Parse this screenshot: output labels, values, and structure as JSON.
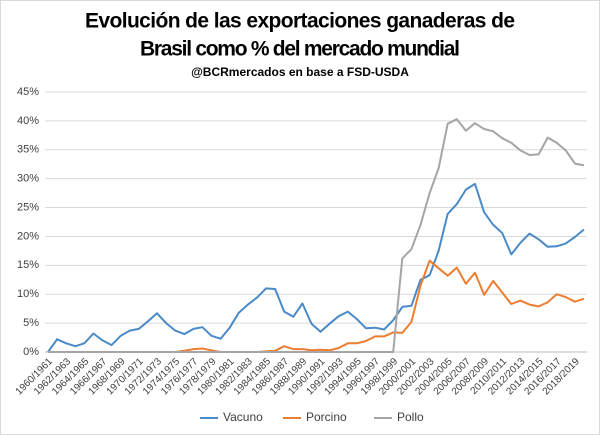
{
  "chart_data": {
    "type": "line",
    "title": "Evolución de las exportaciones ganaderas de",
    "title_line2": "Brasil como % del mercado mundial",
    "subtitle": "@BCRmercados en base a FSD-USDA",
    "categories": [
      "1960/1961",
      null,
      "1962/1963",
      null,
      "1964/1965",
      null,
      "1966/1967",
      null,
      "1968/1969",
      null,
      "1970/1971",
      null,
      "1972/1973",
      null,
      "1974/1975",
      null,
      "1976/1977",
      null,
      "1978/1979",
      null,
      "1980/1981",
      null,
      "1982/1983",
      null,
      "1984/1985",
      null,
      "1986/1987",
      null,
      "1988/1989",
      null,
      "1990/1991",
      null,
      "1992/1993",
      null,
      "1994/1995",
      null,
      "1996/1997",
      null,
      "1998/1999",
      null,
      "2000/2001",
      null,
      "2002/2003",
      null,
      "2004/2005",
      null,
      "2006/2007",
      null,
      "2008/2009",
      null,
      "2010/2011",
      null,
      "2012/2013",
      null,
      "2014/2015",
      null,
      "2016/2017",
      null,
      "2018/2019",
      null
    ],
    "series": [
      {
        "name": "Vacuno",
        "color": "#4a8ac9",
        "values": [
          0,
          2.2,
          1.5,
          1.0,
          1.5,
          3.2,
          2.0,
          1.2,
          2.8,
          3.7,
          4.0,
          5.3,
          6.7,
          5.0,
          3.7,
          3.1,
          4.0,
          4.3,
          2.8,
          2.3,
          4.2,
          6.8,
          8.2,
          9.4,
          11.0,
          10.9,
          7.0,
          6.1,
          8.4,
          4.9,
          3.5,
          4.9,
          6.2,
          7.0,
          5.7,
          4.1,
          4.2,
          3.9,
          5.5,
          7.8,
          8.0,
          12.5,
          13.3,
          17.5,
          23.9,
          25.6,
          28.1,
          29.1,
          24.2,
          22.0,
          20.6,
          16.9,
          18.9,
          20.5,
          19.5,
          18.2,
          18.3,
          18.8,
          19.9,
          21.2
        ]
      },
      {
        "name": "Porcino",
        "color": "#ed7d31",
        "values": [
          0,
          0,
          0,
          0,
          0,
          0,
          0,
          0,
          0,
          0,
          0,
          0,
          0,
          0,
          0,
          0.2,
          0.5,
          0.6,
          0.3,
          0,
          0,
          0,
          0,
          0,
          0.1,
          0.2,
          1.0,
          0.5,
          0.5,
          0.3,
          0.4,
          0.3,
          0.7,
          1.5,
          1.5,
          1.9,
          2.7,
          2.7,
          3.4,
          3.3,
          5.2,
          11.5,
          15.8,
          14.5,
          13.2,
          14.6,
          11.8,
          13.7,
          9.9,
          12.3,
          10.3,
          8.3,
          8.9,
          8.2,
          7.9,
          8.6,
          10.0,
          9.5,
          8.7,
          9.2
        ]
      },
      {
        "name": "Pollo",
        "color": "#a5a5a5",
        "values": [
          0,
          0,
          0,
          0,
          0,
          0,
          0,
          0,
          0,
          0,
          0,
          0,
          0,
          0,
          0,
          0,
          0,
          0,
          0,
          0,
          0,
          0,
          0,
          0,
          0,
          0,
          0,
          0,
          0,
          0,
          0,
          0,
          0,
          0,
          0,
          0,
          0,
          0,
          0,
          16.2,
          17.8,
          22.0,
          27.5,
          31.8,
          39.5,
          40.3,
          38.3,
          39.6,
          38.6,
          38.2,
          37.0,
          36.2,
          34.9,
          34.1,
          34.2,
          37.1,
          36.2,
          34.9,
          32.6,
          32.3
        ]
      }
    ],
    "ylim": [
      0,
      45
    ],
    "yticks": [
      {
        "value": 0,
        "label": "0%"
      },
      {
        "value": 5,
        "label": "5%"
      },
      {
        "value": 10,
        "label": "10%"
      },
      {
        "value": 15,
        "label": "15%"
      },
      {
        "value": 20,
        "label": "20%"
      },
      {
        "value": 25,
        "label": "25%"
      },
      {
        "value": 30,
        "label": "30%"
      },
      {
        "value": 35,
        "label": "35%"
      },
      {
        "value": 40,
        "label": "40%"
      },
      {
        "value": 45,
        "label": "45%"
      }
    ],
    "grid": true
  }
}
